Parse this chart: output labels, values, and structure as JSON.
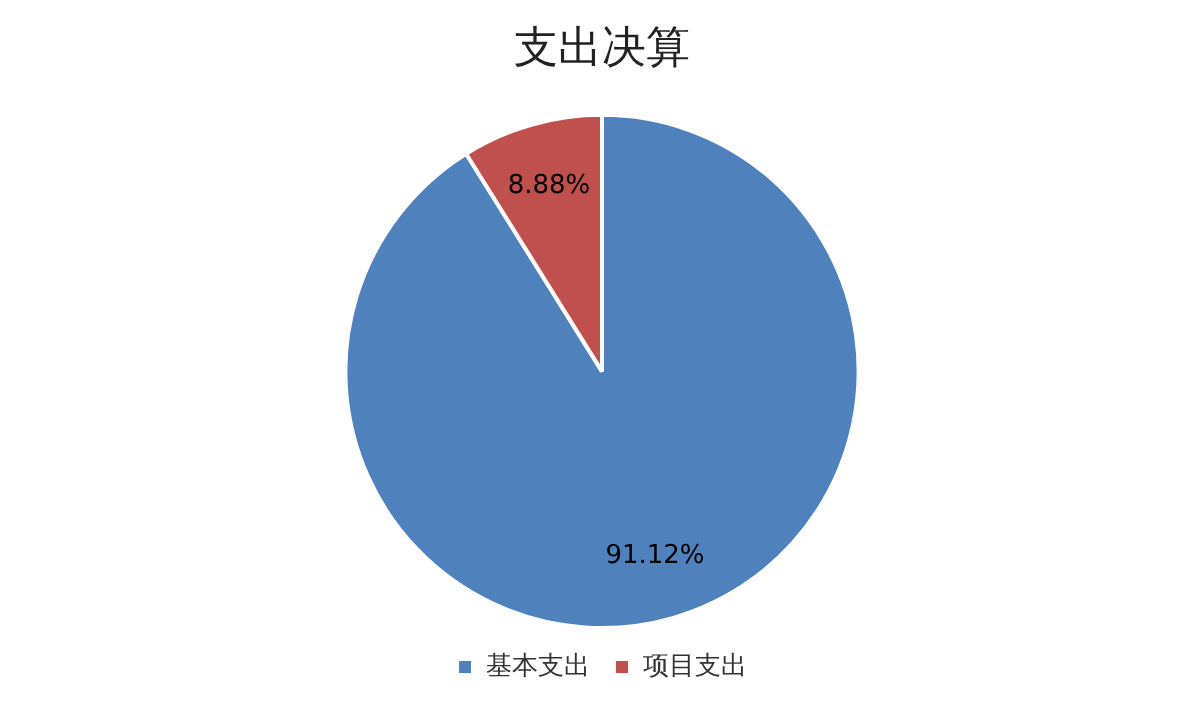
{
  "chart_data": {
    "type": "pie",
    "title": "支出决算",
    "categories": [
      "基本支出",
      "项目支出"
    ],
    "values": [
      91.12,
      8.88
    ],
    "colors": [
      "#4f81bd",
      "#c0504d"
    ],
    "value_labels": [
      "91.12%",
      "8.88%"
    ],
    "legend": "bottom"
  }
}
